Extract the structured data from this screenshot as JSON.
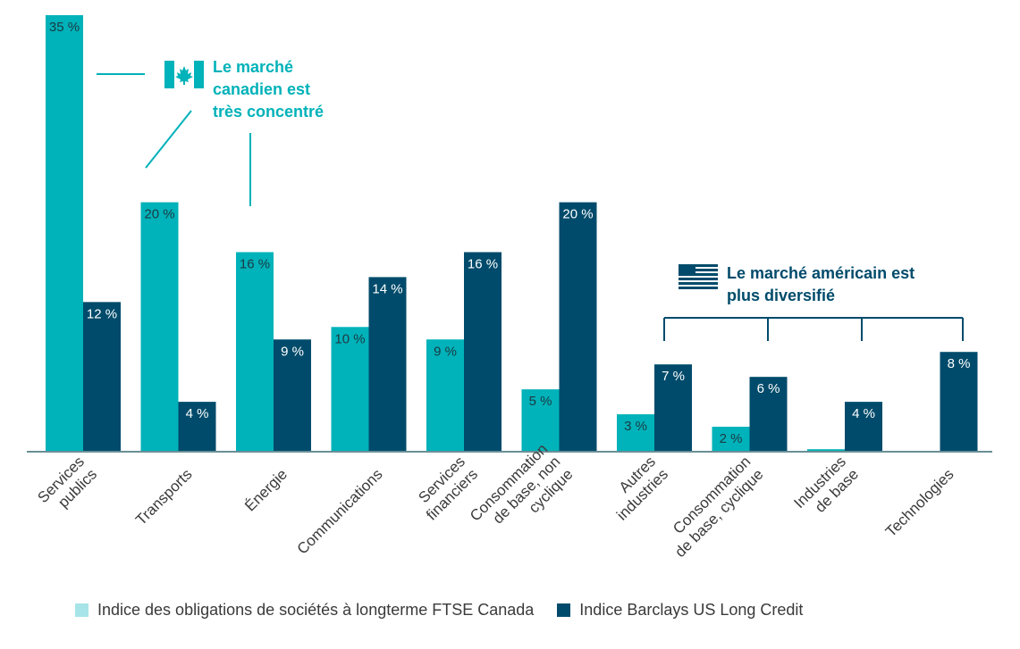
{
  "chart_data": {
    "type": "bar",
    "categories": [
      [
        "Services",
        "publics"
      ],
      [
        "Transports"
      ],
      [
        "Énergie"
      ],
      [
        "Communications"
      ],
      [
        "Services",
        "financiers"
      ],
      [
        "Consommation",
        "de base, non",
        "cyclique"
      ],
      [
        "Autres",
        "industries"
      ],
      [
        "Consommation",
        "de base, cyclique"
      ],
      [
        "Industries",
        "de base"
      ],
      [
        "Technologies"
      ]
    ],
    "series": [
      {
        "name": "Indice des obligations de sociétés à longterme FTSE Canada",
        "color": "#00b2b9",
        "values": [
          35,
          20,
          16,
          10,
          9,
          5,
          3,
          2,
          0.2,
          0
        ],
        "labels": [
          "35 %",
          "20 %",
          "16 %",
          "10 %",
          "9 %",
          "5 %",
          "3 %",
          "2 %",
          "",
          ""
        ]
      },
      {
        "name": "Indice Barclays US Long Credit",
        "color": "#004b6b",
        "values": [
          12,
          4,
          9,
          14,
          16,
          20,
          7,
          6,
          4,
          8
        ],
        "labels": [
          "12 %",
          "4 %",
          "9 %",
          "14 %",
          "16 %",
          "20 %",
          "7 %",
          "6 %",
          "4 %",
          "8 %"
        ]
      }
    ],
    "ylim": [
      0,
      35
    ],
    "grid": false,
    "legend_position": "bottom",
    "annotations": [
      {
        "text": [
          "Le marché",
          "canadien est",
          "très concentré"
        ],
        "icon": "canada-flag-icon",
        "color": "#00b2b9"
      },
      {
        "text": [
          "Le marché américain est",
          "plus diversifié"
        ],
        "icon": "us-flag-icon",
        "color": "#004b6b"
      }
    ]
  },
  "legend": {
    "items": [
      {
        "label": "Indice des obligations de sociétés à longterme FTSE Canada",
        "color": "#a6e4e8"
      },
      {
        "label": "Indice Barclays US Long Credit",
        "color": "#004b6b"
      }
    ]
  }
}
